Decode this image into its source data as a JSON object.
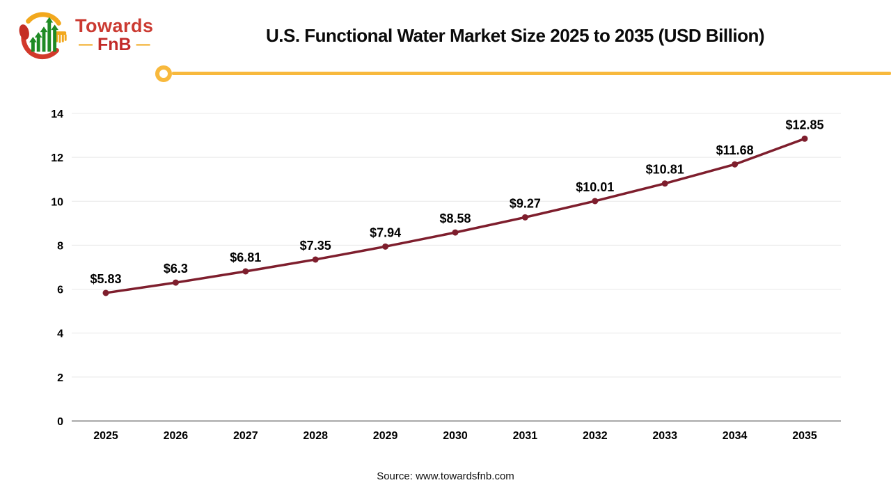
{
  "logo": {
    "line1": "Towards",
    "line2": "FnB",
    "dash_left": "—",
    "dash_right": "—",
    "brand_red": "#C43029",
    "brand_gold": "#F2A81D",
    "bar_green": "#1E8A24"
  },
  "header": {
    "title": "U.S. Functional Water Market Size 2025 to 2035 (USD Billion)"
  },
  "divider": {
    "color": "#F8B93D"
  },
  "chart_data": {
    "type": "line",
    "title": "U.S. Functional Water Market Size 2025 to 2035 (USD Billion)",
    "unit": "USD Billion",
    "categories": [
      "2025",
      "2026",
      "2027",
      "2028",
      "2029",
      "2030",
      "2031",
      "2032",
      "2033",
      "2034",
      "2035"
    ],
    "series": [
      {
        "name": "U.S. Functional Water Market Size",
        "values": [
          5.83,
          6.3,
          6.81,
          7.35,
          7.94,
          8.58,
          9.27,
          10.01,
          10.81,
          11.68,
          12.85
        ],
        "labels": [
          "$5.83",
          "$6.3",
          "$6.81",
          "$7.35",
          "$7.94",
          "$8.58",
          "$9.27",
          "$10.01",
          "$10.81",
          "$11.68",
          "$12.85"
        ]
      }
    ],
    "ylim": [
      0,
      14
    ],
    "ytick_step": 2,
    "yticks": [
      0,
      2,
      4,
      6,
      8,
      10,
      12,
      14
    ],
    "grid": true,
    "legend": "none",
    "line_color": "#7E1E2D",
    "marker": "circle",
    "gridline_color": "#E8E8E8",
    "axis_line_color": "#A9A9A9",
    "label_color": "#000000"
  },
  "footer": {
    "source": "Source: www.towardsfnb.com"
  }
}
